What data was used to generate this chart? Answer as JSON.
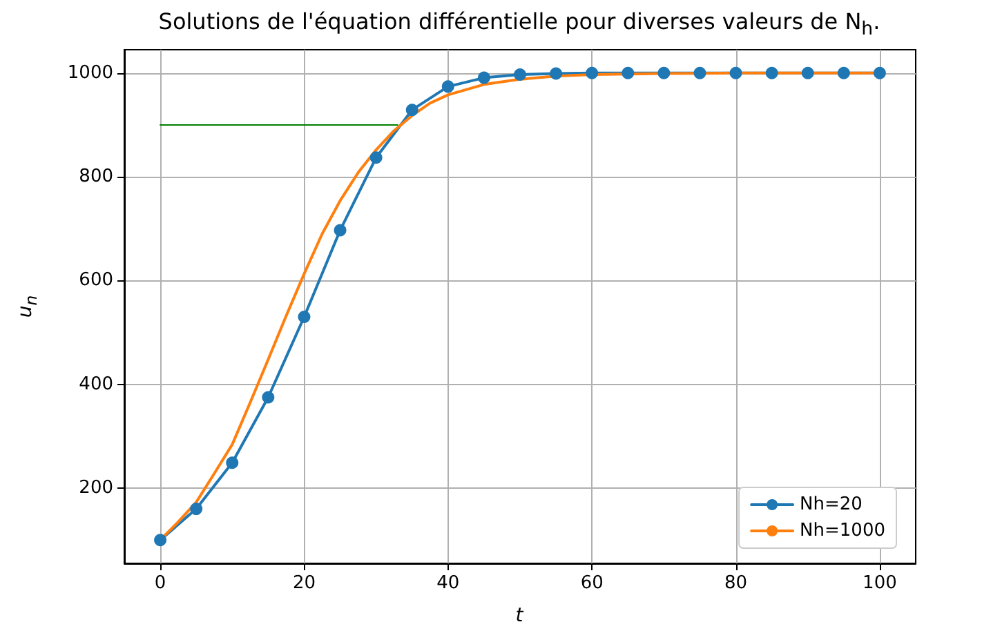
{
  "chart_data": {
    "type": "line",
    "title": "Solutions de l'équation différentielle pour diverses valeurs de N$_{h}$.",
    "xlabel": "t",
    "ylabel": "u$_{n}$",
    "xlim": [
      -5,
      105
    ],
    "xticks": [
      0,
      20,
      40,
      60,
      80,
      100
    ],
    "ylim": [
      55,
      1045
    ],
    "yticks": [
      200,
      400,
      600,
      800,
      1000
    ],
    "grid": true,
    "legend": "bottom right",
    "series": [
      {
        "name": "Nh=20",
        "color": "#1f77b4",
        "marker": "circle",
        "x": [
          0,
          5,
          10,
          15,
          20,
          25,
          30,
          35,
          40,
          45,
          50,
          55,
          60,
          65,
          70,
          75,
          80,
          85,
          90,
          95,
          100
        ],
        "values": [
          100,
          160,
          249,
          375,
          530,
          697,
          837,
          929,
          974,
          991,
          997,
          999,
          1000,
          1000,
          1000,
          1000,
          1000,
          1000,
          1000,
          1000,
          1000
        ]
      },
      {
        "name": "Nh=1000",
        "color": "#ff7f0e",
        "marker": "none",
        "x": [
          0,
          2.5,
          5,
          7.5,
          10,
          12.5,
          15,
          17.5,
          20,
          22.5,
          25,
          27.5,
          30,
          32.5,
          35,
          37.5,
          40,
          45,
          50,
          55,
          60,
          70,
          80,
          90,
          100
        ],
        "values": [
          100,
          135,
          173,
          228,
          284,
          365,
          448,
          532,
          613,
          690,
          754,
          808,
          852,
          889,
          918,
          942,
          958,
          978,
          988,
          994,
          997,
          999,
          1000,
          1000,
          1000
        ]
      },
      {
        "color": "#008000",
        "marker": "none",
        "x": [
          0,
          33
        ],
        "values": [
          900,
          900
        ]
      }
    ]
  }
}
